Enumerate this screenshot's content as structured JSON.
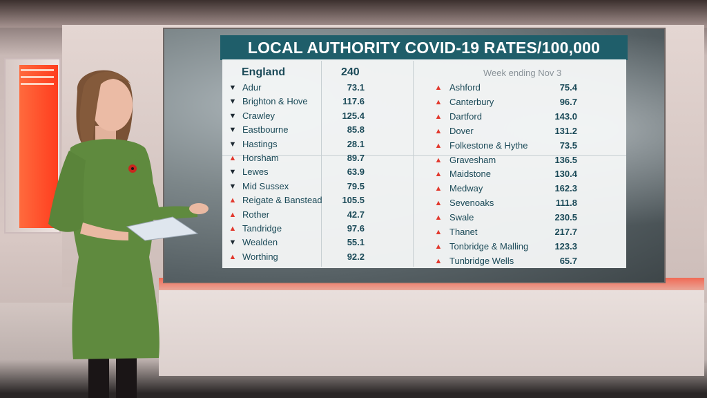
{
  "graphic": {
    "title": "LOCAL AUTHORITY COVID-19 RATES/100,000",
    "england": {
      "label": "England",
      "value": "240"
    },
    "week_label": "Week ending Nov 3",
    "left_rows": [
      {
        "trend": "down",
        "name": "Adur",
        "value": "73.1"
      },
      {
        "trend": "down",
        "name": "Brighton & Hove",
        "value": "117.6"
      },
      {
        "trend": "down",
        "name": "Crawley",
        "value": "125.4"
      },
      {
        "trend": "down",
        "name": "Eastbourne",
        "value": "85.8"
      },
      {
        "trend": "down",
        "name": "Hastings",
        "value": "28.1"
      },
      {
        "trend": "up",
        "name": "Horsham",
        "value": "89.7"
      },
      {
        "trend": "down",
        "name": "Lewes",
        "value": "63.9"
      },
      {
        "trend": "down",
        "name": "Mid Sussex",
        "value": "79.5"
      },
      {
        "trend": "up",
        "name": "Reigate & Banstead",
        "value": "105.5"
      },
      {
        "trend": "up",
        "name": "Rother",
        "value": "42.7"
      },
      {
        "trend": "up",
        "name": "Tandridge",
        "value": "97.6"
      },
      {
        "trend": "down",
        "name": "Wealden",
        "value": "55.1"
      },
      {
        "trend": "up",
        "name": "Worthing",
        "value": "92.2"
      }
    ],
    "right_rows": [
      {
        "trend": "up",
        "name": "Ashford",
        "value": "75.4"
      },
      {
        "trend": "up",
        "name": "Canterbury",
        "value": "96.7"
      },
      {
        "trend": "up",
        "name": "Dartford",
        "value": "143.0"
      },
      {
        "trend": "up",
        "name": "Dover",
        "value": "131.2"
      },
      {
        "trend": "up",
        "name": "Folkestone & Hythe",
        "value": "73.5"
      },
      {
        "trend": "up",
        "name": "Gravesham",
        "value": "136.5"
      },
      {
        "trend": "up",
        "name": "Maidstone",
        "value": "130.4"
      },
      {
        "trend": "up",
        "name": "Medway",
        "value": "162.3"
      },
      {
        "trend": "up",
        "name": "Sevenoaks",
        "value": "111.8"
      },
      {
        "trend": "up",
        "name": "Swale",
        "value": "230.5"
      },
      {
        "trend": "up",
        "name": "Thanet",
        "value": "217.7"
      },
      {
        "trend": "up",
        "name": "Tonbridge & Malling",
        "value": "123.3"
      },
      {
        "trend": "up",
        "name": "Tunbridge Wells",
        "value": "65.7"
      }
    ]
  },
  "colors": {
    "title_bg": "#1f5e6a",
    "text": "#1b4a58",
    "up_marker": "#e23a2f",
    "down_marker": "#1e2a33",
    "dress": "#5f8a3e"
  },
  "icons": {
    "up": "triangle-up-icon",
    "down": "triangle-down-icon"
  }
}
